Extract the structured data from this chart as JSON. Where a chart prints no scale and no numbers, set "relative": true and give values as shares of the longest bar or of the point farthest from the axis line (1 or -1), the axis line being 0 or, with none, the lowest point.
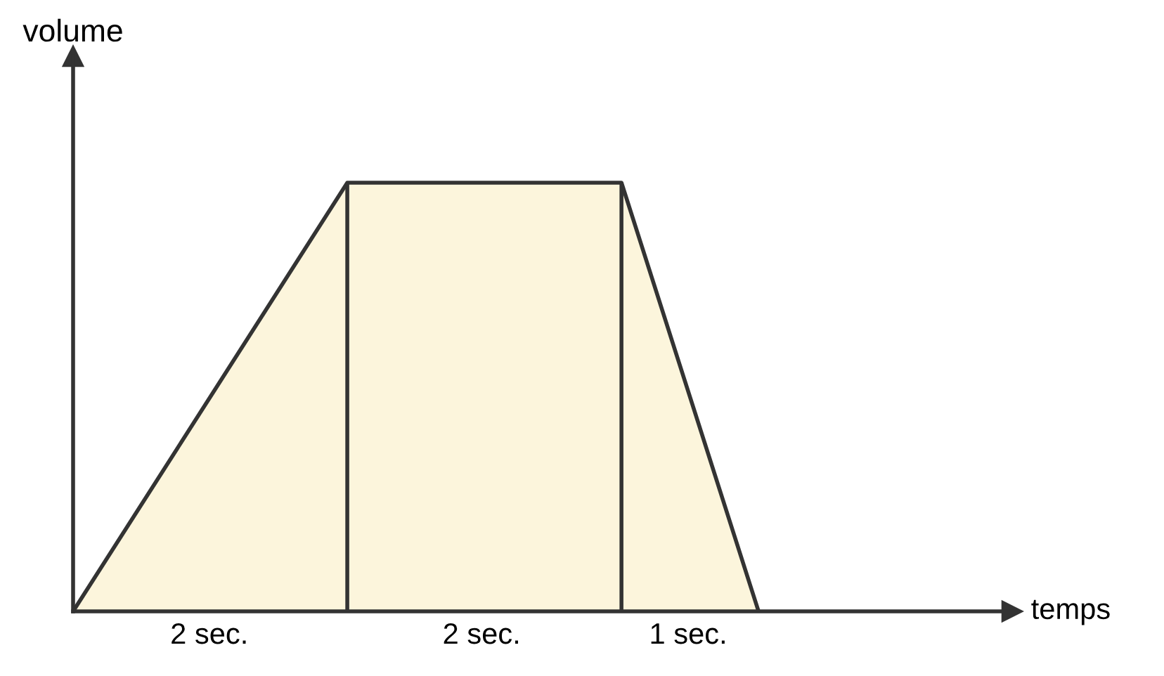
{
  "chart_data": {
    "type": "area",
    "relative": true,
    "ylabel": "volume",
    "grid": "x",
    "categories": [
      null,
      null,
      null,
      null,
      null,
      null
    ],
    "series": [
      {
        "color": "#fcf5dc",
        "values": [
          0,
          0.5,
          1,
          1,
          1,
          0
        ]
      }
    ],
    "annotations": [
      "2 sec.",
      "2 sec.",
      "1 sec.",
      "temps"
    ]
  }
}
